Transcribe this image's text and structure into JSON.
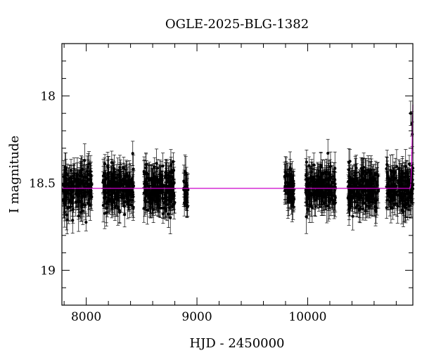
{
  "chart_data": {
    "type": "scatter",
    "title": "OGLE-2025-BLG-1382",
    "xlabel": "HJD - 2450000",
    "ylabel": "I magnitude",
    "xlim": [
      7780,
      10950
    ],
    "ylim": [
      19.2,
      17.7
    ],
    "y_inverted": true,
    "x_ticks": [
      8000,
      9000,
      10000
    ],
    "x_tick_labels": [
      "8000",
      "9000",
      "10000"
    ],
    "y_ticks": [
      18,
      18.5,
      19
    ],
    "y_tick_labels": [
      "18",
      "18.5",
      "19"
    ],
    "grid": false,
    "legend": "none",
    "colors": {
      "points": "#000000",
      "model": "#cc00cc"
    },
    "series": [
      {
        "kind": "observations",
        "baseline_mag": 18.53,
        "scatter_mag": 0.06,
        "typical_error_mag": 0.07,
        "seasons": [
          {
            "start": 7790,
            "end": 8050
          },
          {
            "start": 8150,
            "end": 8430
          },
          {
            "start": 8520,
            "end": 8800
          },
          {
            "start": 8880,
            "end": 8920
          },
          {
            "start": 9790,
            "end": 9880
          },
          {
            "start": 9980,
            "end": 10250
          },
          {
            "start": 10360,
            "end": 10640
          },
          {
            "start": 10710,
            "end": 10950
          }
        ],
        "outliers": [
          {
            "x": 8420,
            "y": 18.33
          },
          {
            "x": 9990,
            "y": 18.38
          },
          {
            "x": 10930,
            "y": 18.1
          },
          {
            "x": 10940,
            "y": 18.16
          },
          {
            "x": 10945,
            "y": 18.22
          }
        ]
      },
      {
        "kind": "model",
        "constant_mag": 18.53,
        "rise_start": 10925,
        "peak_mag": 18.05
      }
    ]
  }
}
